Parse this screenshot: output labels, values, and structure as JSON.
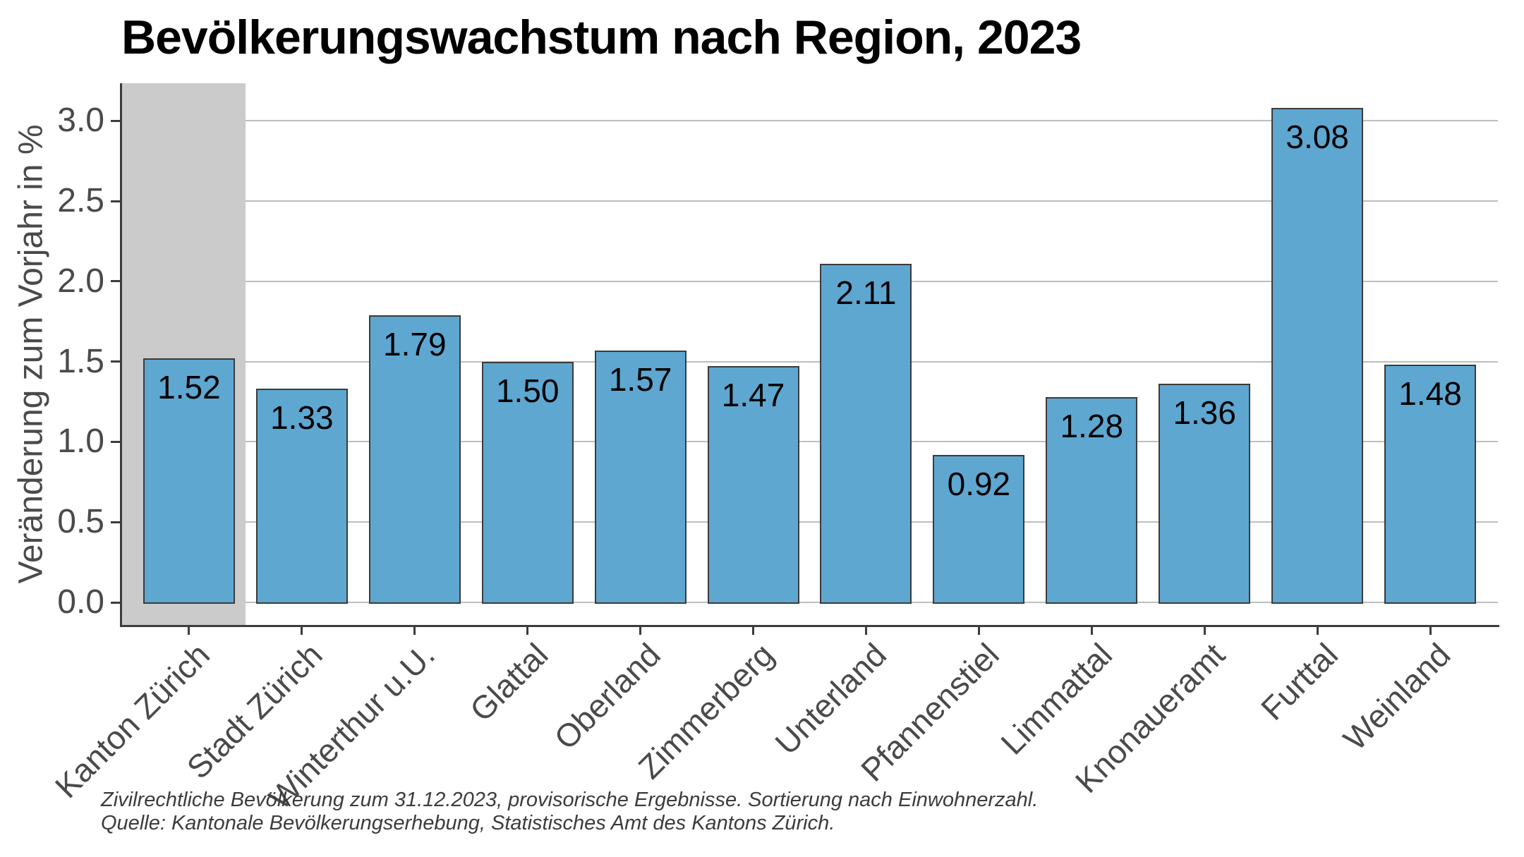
{
  "chart_data": {
    "type": "bar",
    "title": "Bevölkerungswachstum nach Region, 2023",
    "ylabel": "Veränderung zum Vorjahr in %",
    "xlabel": "",
    "categories": [
      "Kanton Zürich",
      "Stadt Zürich",
      "Winterthur u.U.",
      "Glattal",
      "Oberland",
      "Zimmerberg",
      "Unterland",
      "Pfannenstiel",
      "Limmattal",
      "Knonaueramt",
      "Furttal",
      "Weinland"
    ],
    "values": [
      1.52,
      1.33,
      1.79,
      1.5,
      1.57,
      1.47,
      2.11,
      0.92,
      1.28,
      1.36,
      3.08,
      1.48
    ],
    "value_labels": [
      "1.52",
      "1.33",
      "1.79",
      "1.50",
      "1.57",
      "1.47",
      "2.11",
      "0.92",
      "1.28",
      "1.36",
      "3.08",
      "1.48"
    ],
    "highlight_category": "Kanton Zürich",
    "highlight_index": 0,
    "ylim": [
      -0.15,
      3.23
    ],
    "yticks": [
      "0.0",
      "0.5",
      "1.0",
      "1.5",
      "2.0",
      "2.5",
      "3.0"
    ],
    "ytick_values": [
      0.0,
      0.5,
      1.0,
      1.5,
      2.0,
      2.5,
      3.0
    ],
    "grid": "horizontal-major",
    "legend": "none",
    "notes": [
      "Zivilrechtliche Bevölkerung zum 31.12.2023, provisorische Ergebnisse. Sortierung nach Einwohnerzahl.",
      "Quelle: Kantonale Bevölkerungserhebung, Statistisches Amt des Kantons Zürich."
    ],
    "colors": {
      "bar_fill": "#5EA7D1",
      "bar_border": "#3B3B3B",
      "highlight_band": "#CBCBCB",
      "gridline": "#BEBEBE",
      "axis_line": "#3C3C3C",
      "tick_text": "#4A4A4A",
      "title_text": "#000000",
      "value_label_text": "#000000",
      "note_text": "#3C3C3C",
      "background": "#FFFFFF"
    }
  }
}
